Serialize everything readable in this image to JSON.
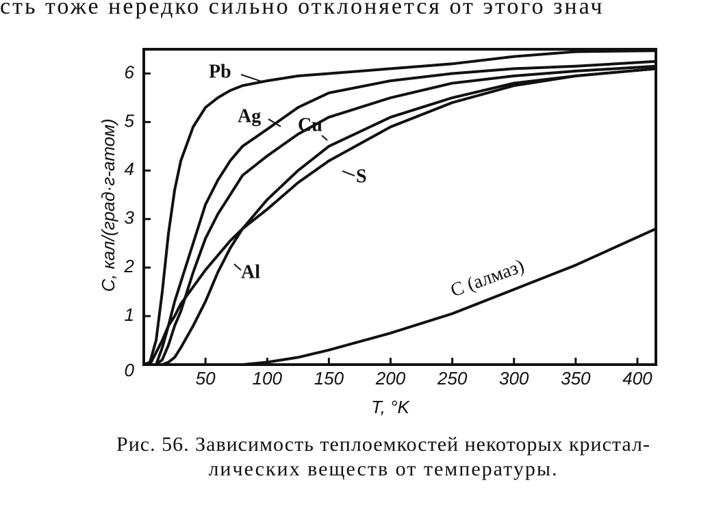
{
  "header_text": "сть тоже нередко сильно отклоняется от этого знач",
  "caption": [
    "Рис. 56. Зависимость теплоемкостей некоторых кристал-",
    "лических веществ от температуры."
  ],
  "chart_data": {
    "type": "line",
    "x_label": "T, °K",
    "y_label": "C, кал/(град·г-атом)",
    "x": [
      0,
      5,
      10,
      15,
      20,
      25,
      30,
      40,
      50,
      60,
      70,
      80,
      100,
      125,
      150,
      200,
      250,
      300,
      350,
      415
    ],
    "series": [
      {
        "name": "Pb",
        "color": "#111111",
        "values": [
          0,
          0.05,
          0.5,
          1.5,
          2.7,
          3.6,
          4.2,
          4.9,
          5.3,
          5.5,
          5.65,
          5.75,
          5.85,
          5.95,
          6.0,
          6.1,
          6.2,
          6.35,
          6.45,
          6.47
        ]
      },
      {
        "name": "Ag",
        "color": "#111111",
        "values": [
          null,
          null,
          0,
          0.35,
          0.8,
          1.3,
          1.7,
          2.5,
          3.3,
          3.8,
          4.2,
          4.5,
          4.85,
          5.3,
          5.6,
          5.85,
          6.0,
          6.1,
          6.15,
          6.25
        ]
      },
      {
        "name": "Cu",
        "color": "#111111",
        "values": [
          null,
          null,
          0,
          0.1,
          0.4,
          0.8,
          1.1,
          1.9,
          2.6,
          3.1,
          3.5,
          3.9,
          4.3,
          4.75,
          5.1,
          5.5,
          5.8,
          5.95,
          6.05,
          6.15
        ]
      },
      {
        "name": "S",
        "color": "#111111",
        "values": [
          null,
          0,
          0.25,
          0.5,
          0.8,
          1.0,
          1.25,
          1.6,
          1.95,
          2.25,
          2.55,
          2.8,
          3.2,
          3.75,
          4.2,
          4.9,
          5.4,
          5.75,
          5.95,
          6.1
        ]
      },
      {
        "name": "Al",
        "color": "#111111",
        "values": [
          null,
          null,
          null,
          0,
          0.05,
          0.15,
          0.35,
          0.8,
          1.3,
          1.9,
          2.4,
          2.8,
          3.4,
          4.0,
          4.5,
          5.1,
          5.5,
          5.8,
          5.95,
          6.1
        ]
      },
      {
        "name": "C (алмаз)",
        "color": "#111111",
        "values": [
          null,
          null,
          null,
          null,
          null,
          null,
          null,
          null,
          null,
          null,
          null,
          0,
          0.05,
          0.15,
          0.3,
          0.65,
          1.05,
          1.55,
          2.05,
          2.8
        ]
      }
    ],
    "xlim": [
      0,
      415
    ],
    "ylim": [
      0,
      6.5
    ],
    "xticks": [
      50,
      100,
      150,
      200,
      250,
      300,
      350,
      400
    ],
    "yticks": [
      0,
      1,
      2,
      3,
      4,
      5,
      6
    ]
  }
}
